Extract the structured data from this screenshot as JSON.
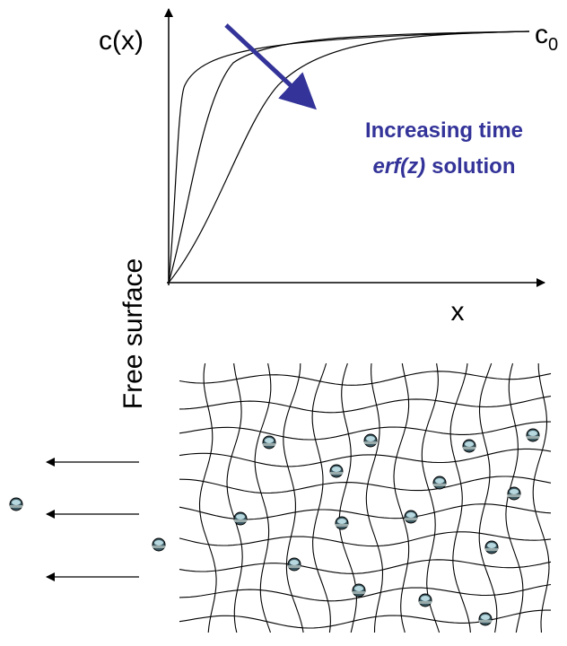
{
  "y_axis_label": "c(x)",
  "c0_label": {
    "main": "c",
    "subscript": "0"
  },
  "annotation": {
    "line1": "Increasing time",
    "line2_italic": "erf(z)",
    "line2_rest": "solution"
  },
  "x_axis_label": "x",
  "surface_label": "Free surface"
}
